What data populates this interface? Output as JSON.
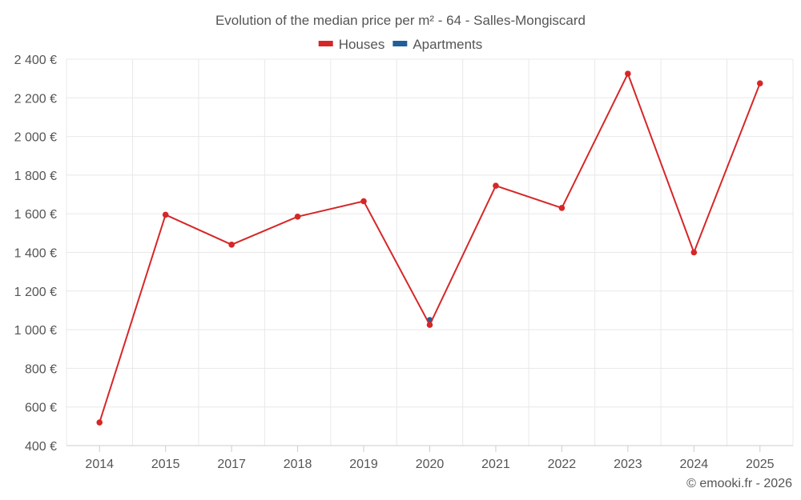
{
  "chart_data": {
    "type": "line",
    "title": "Evolution of the median price per m² - 64 - Salles-Mongiscard",
    "categories": [
      "2014",
      "2015",
      "2017",
      "2018",
      "2019",
      "2020",
      "2021",
      "2022",
      "2023",
      "2024",
      "2025"
    ],
    "series": [
      {
        "name": "Houses",
        "color": "#d62728",
        "values": [
          520,
          1595,
          1440,
          1585,
          1665,
          1025,
          1745,
          1630,
          2325,
          1400,
          2275
        ]
      },
      {
        "name": "Apartments",
        "color": "#1f5f99",
        "values": [
          null,
          null,
          null,
          null,
          null,
          1050,
          null,
          null,
          null,
          null,
          null
        ]
      }
    ],
    "ylim": [
      400,
      2400
    ],
    "yticks": [
      400,
      600,
      800,
      1000,
      1200,
      1400,
      1600,
      1800,
      2000,
      2200,
      2400
    ],
    "ytick_labels": [
      "400 €",
      "600 €",
      "800 €",
      "1 000 €",
      "1 200 €",
      "1 400 €",
      "1 600 €",
      "1 800 €",
      "2 000 €",
      "2 200 €",
      "2 400 €"
    ],
    "xlabel": "",
    "ylabel": "",
    "grid": true,
    "legend": "top-center"
  },
  "credit": "© emooki.fr - 2026"
}
